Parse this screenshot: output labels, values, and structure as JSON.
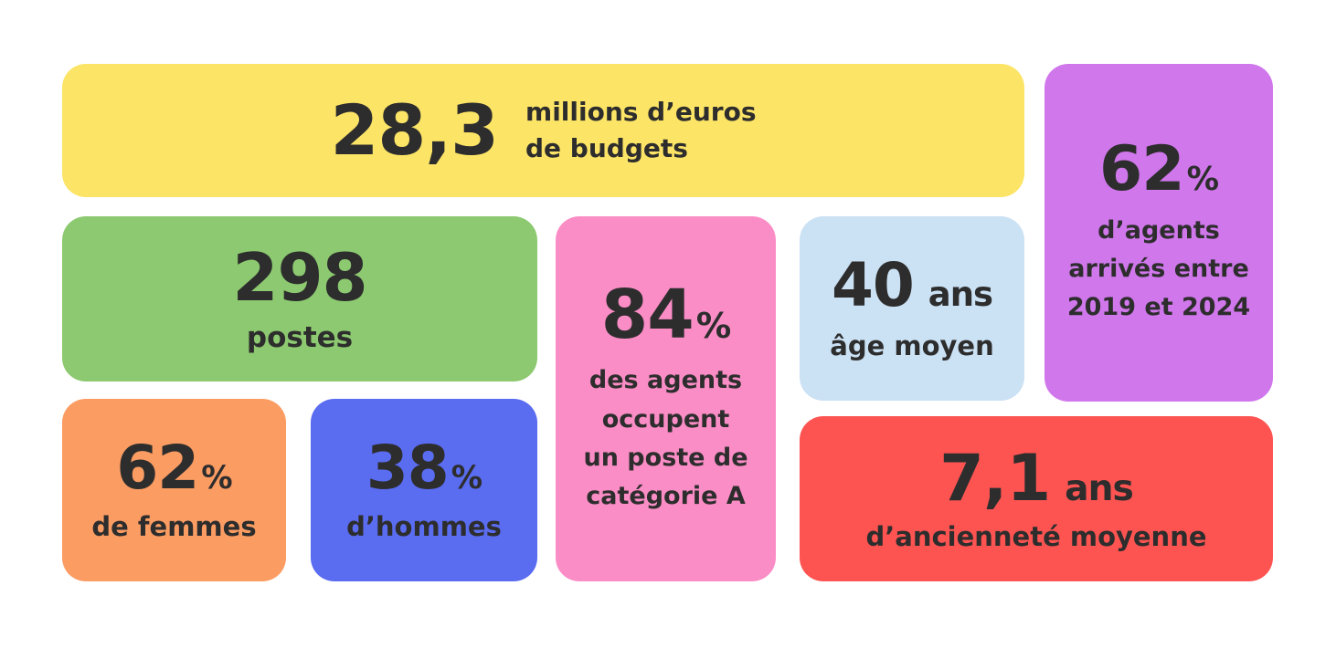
{
  "page": {
    "background": "#ffffff",
    "text_color": "#2d2d2d"
  },
  "cards": [
    {
      "name": "budget",
      "color": "#FCE466",
      "value": "28,3",
      "label_lines": [
        "millions d’euros",
        "de budgets"
      ]
    },
    {
      "name": "arrivals",
      "color": "#D077EC",
      "value": "62",
      "value_suffix": "%",
      "label_lines": [
        "d’agents",
        "arrivés entre",
        "2019 et 2024"
      ]
    },
    {
      "name": "postes",
      "color": "#8CC970",
      "value": "298",
      "label_lines": [
        "postes"
      ]
    },
    {
      "name": "categorie-a",
      "color": "#FB8DC6",
      "value": "84",
      "value_suffix": "%",
      "label_lines": [
        "des agents",
        "occupent",
        "un poste de",
        "catégorie A"
      ]
    },
    {
      "name": "age-moyen",
      "color": "#CBE1F4",
      "value": "40",
      "value_unit": "ans",
      "label_lines": [
        "âge moyen"
      ]
    },
    {
      "name": "femmes",
      "color": "#FB9C63",
      "value": "62",
      "value_suffix": "%",
      "label_lines": [
        "de femmes"
      ]
    },
    {
      "name": "hommes",
      "color": "#5A6CF0",
      "value": "38",
      "value_suffix": "%",
      "label_lines": [
        "d’hommes"
      ]
    },
    {
      "name": "anciennete",
      "color": "#FD5452",
      "value": "7,1",
      "value_unit": "ans",
      "label_lines": [
        "d’ancienneté moyenne"
      ]
    }
  ],
  "chart_data": {
    "type": "table",
    "title": "Chiffres clés",
    "categories": [
      "Budget (millions d’euros)",
      "Agents arrivés entre 2019 et 2024 (%)",
      "Postes",
      "Agents occupant un poste de catégorie A (%)",
      "Âge moyen (ans)",
      "Femmes (%)",
      "Hommes (%)",
      "Ancienneté moyenne (ans)"
    ],
    "values": [
      28.3,
      62,
      298,
      84,
      40,
      62,
      38,
      7.1
    ]
  }
}
